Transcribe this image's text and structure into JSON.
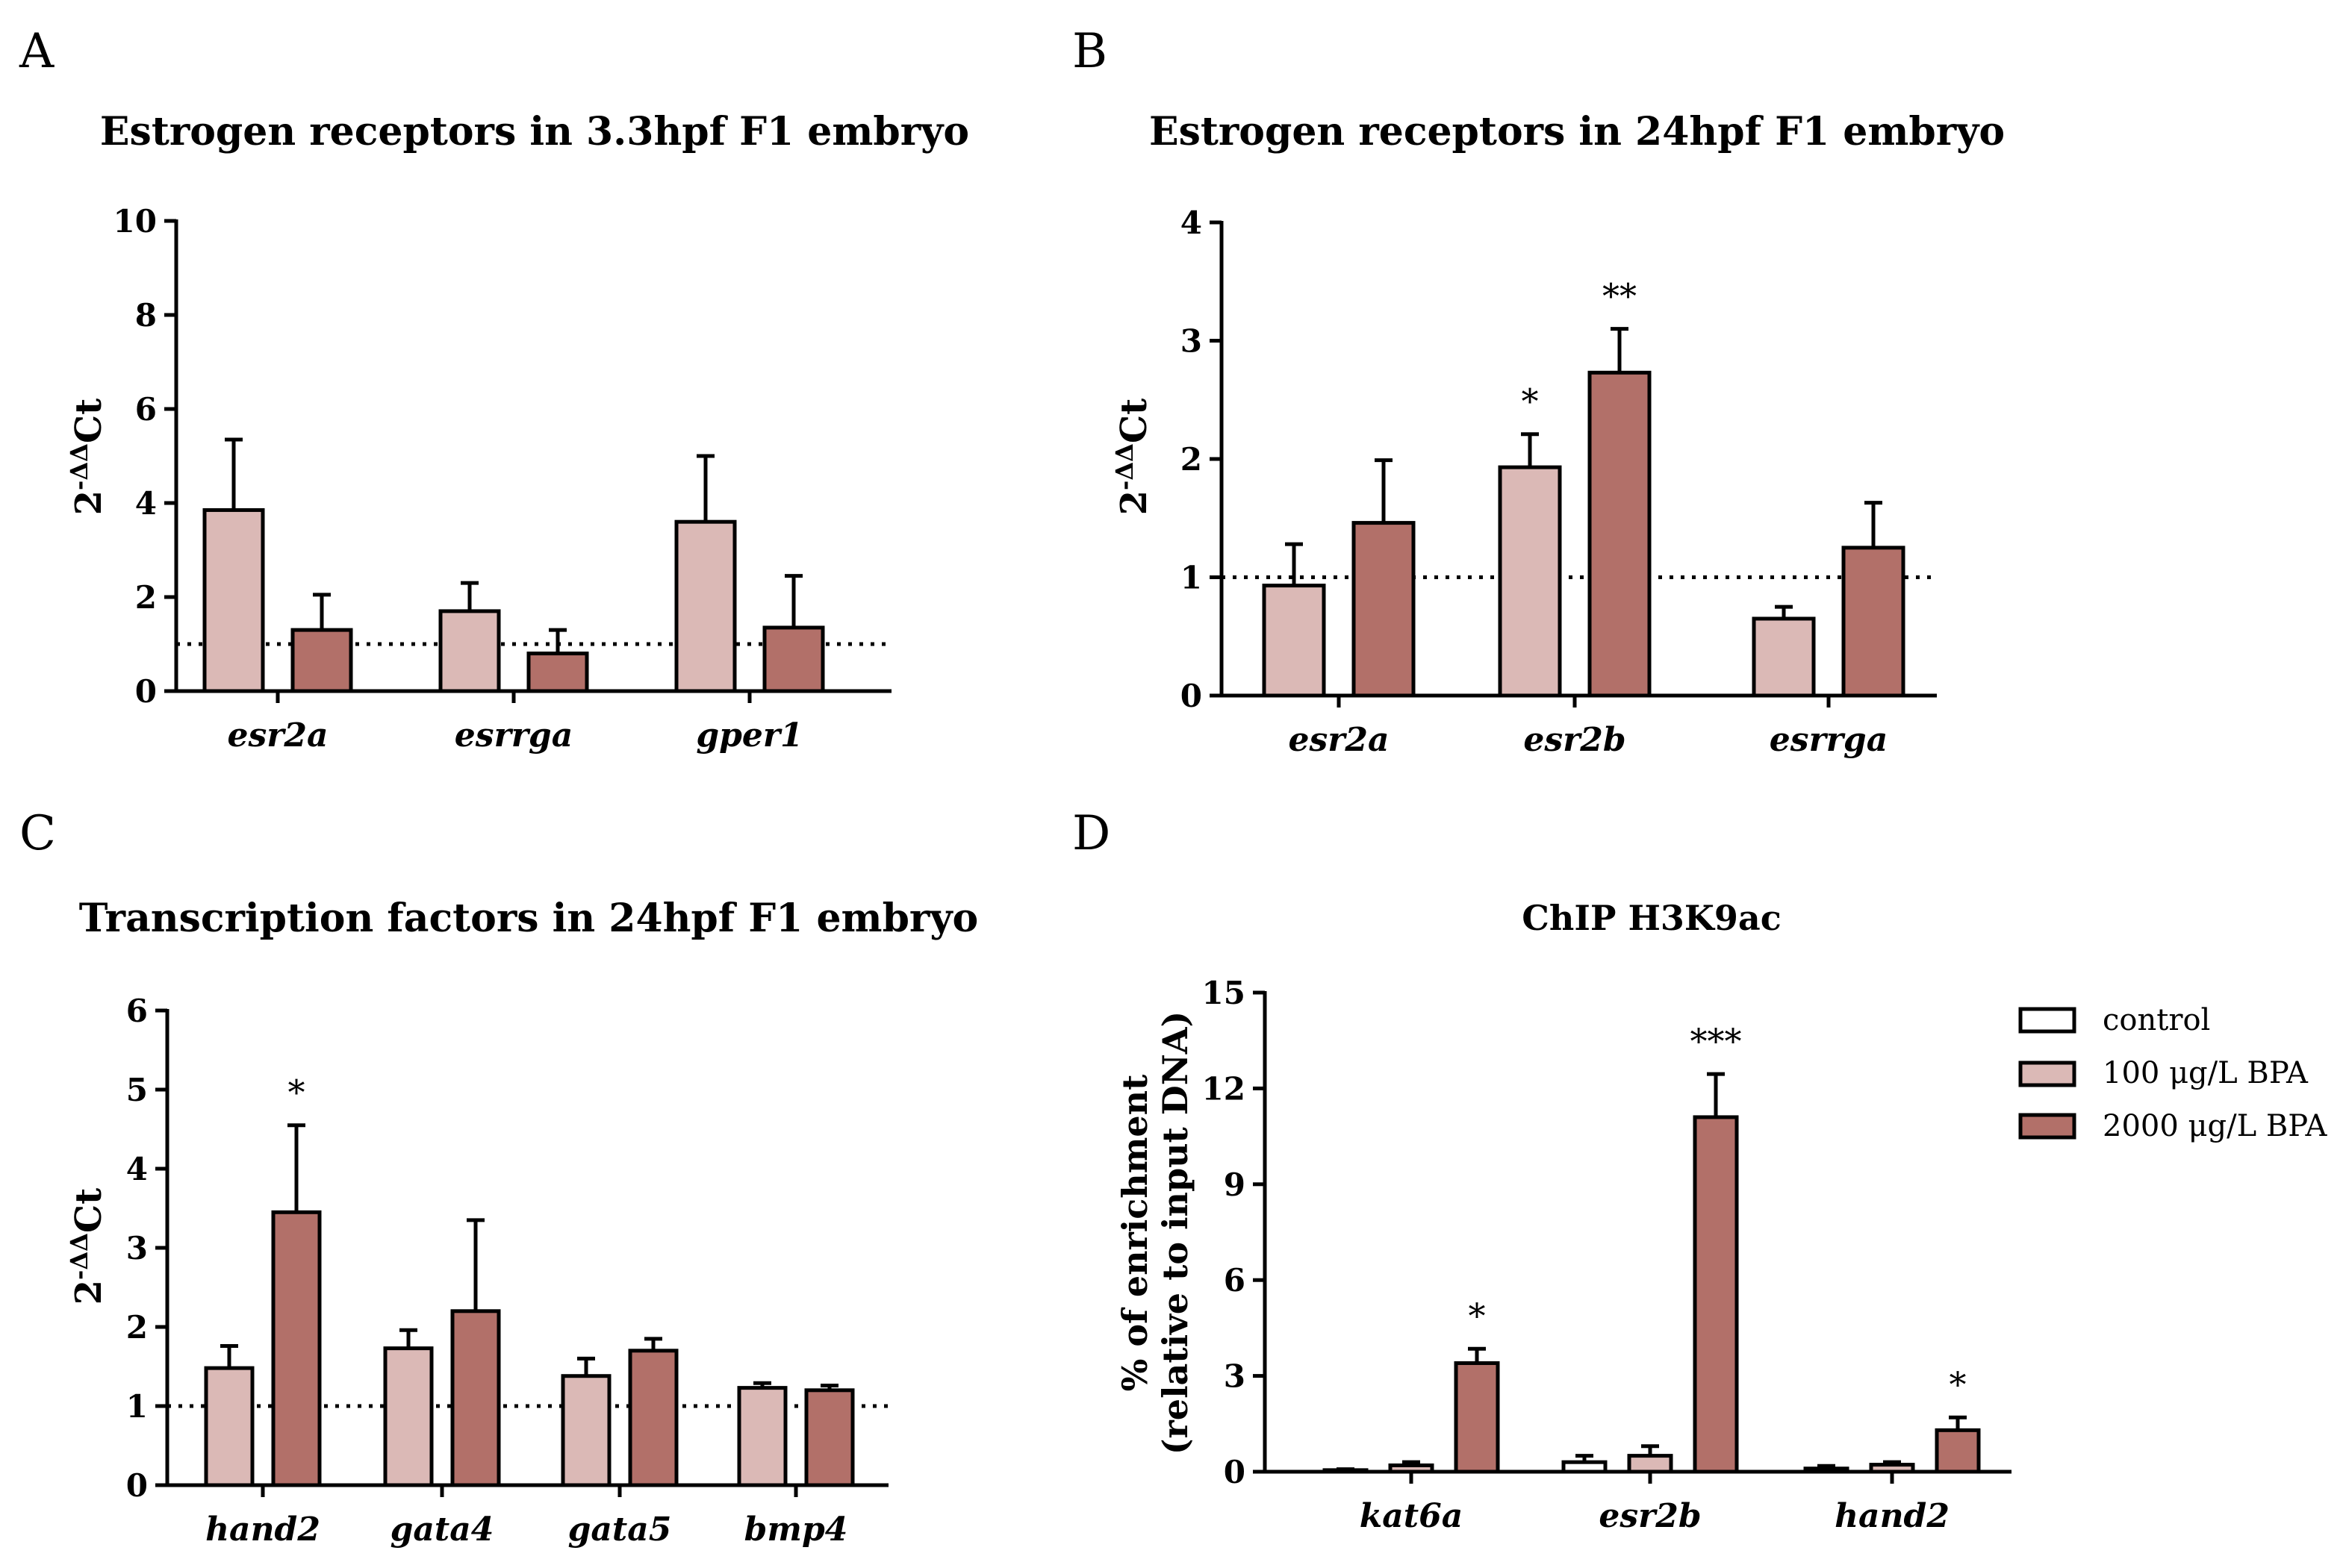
{
  "legend": {
    "items": [
      {
        "label": "control",
        "color": "#ffffff"
      },
      {
        "label": "100 μg/L BPA",
        "color": "#dbb9b6"
      },
      {
        "label": "2000 μg/L BPA",
        "color": "#b27069"
      }
    ]
  },
  "chart_data": [
    {
      "panel": "A",
      "type": "bar",
      "title": "Estrogen receptors in 3.3hpf F1 embryo",
      "ylabel": "2-ΔΔCt",
      "ylim": [
        0,
        10
      ],
      "yticks": [
        0,
        2,
        4,
        6,
        8,
        10
      ],
      "reference_line": 1,
      "categories": [
        "esr2a",
        "esrrga",
        "gper1"
      ],
      "series": [
        {
          "name": "100 μg/L BPA",
          "color": "#dbb9b6",
          "values": [
            3.85,
            1.7,
            3.6
          ],
          "errors": [
            1.5,
            0.6,
            1.4
          ],
          "sig": [
            "",
            "",
            ""
          ]
        },
        {
          "name": "2000 μg/L BPA",
          "color": "#b27069",
          "values": [
            1.3,
            0.8,
            1.35
          ],
          "errors": [
            0.75,
            0.5,
            1.1
          ],
          "sig": [
            "",
            "",
            ""
          ]
        }
      ]
    },
    {
      "panel": "B",
      "type": "bar",
      "title": "Estrogen receptors in 24hpf F1 embryo",
      "ylabel": "2-ΔΔCt",
      "ylim": [
        0,
        4
      ],
      "yticks": [
        0,
        1,
        2,
        3,
        4
      ],
      "reference_line": 1,
      "categories": [
        "esr2a",
        "esr2b",
        "esrrga"
      ],
      "series": [
        {
          "name": "100 μg/L BPA",
          "color": "#dbb9b6",
          "values": [
            0.93,
            1.93,
            0.65
          ],
          "errors": [
            0.35,
            0.28,
            0.1
          ],
          "sig": [
            "",
            "*",
            ""
          ]
        },
        {
          "name": "2000 μg/L BPA",
          "color": "#b27069",
          "values": [
            1.46,
            2.73,
            1.25
          ],
          "errors": [
            0.53,
            0.37,
            0.38
          ],
          "sig": [
            "",
            "**",
            ""
          ]
        }
      ]
    },
    {
      "panel": "C",
      "type": "bar",
      "title": "Transcription factors in 24hpf F1 embryo",
      "ylabel": "2-ΔΔCt",
      "ylim": [
        0,
        6
      ],
      "yticks": [
        0,
        1,
        2,
        3,
        4,
        5,
        6
      ],
      "reference_line": 1,
      "categories": [
        "hand2",
        "gata4",
        "gata5",
        "bmp4"
      ],
      "series": [
        {
          "name": "100 μg/L BPA",
          "color": "#dbb9b6",
          "values": [
            1.48,
            1.73,
            1.38,
            1.23
          ],
          "errors": [
            0.28,
            0.23,
            0.22,
            0.06
          ],
          "sig": [
            "",
            "",
            "",
            ""
          ]
        },
        {
          "name": "2000 μg/L BPA",
          "color": "#b27069",
          "values": [
            3.45,
            2.2,
            1.7,
            1.2
          ],
          "errors": [
            1.1,
            1.15,
            0.15,
            0.06
          ],
          "sig": [
            "*",
            "",
            "",
            ""
          ]
        }
      ]
    },
    {
      "panel": "D",
      "type": "bar",
      "title": "ChIP H3K9ac",
      "ylabel_lines": [
        "% of enrichment",
        "(relative to input DNA)"
      ],
      "ylim": [
        0,
        15
      ],
      "yticks": [
        0,
        3,
        6,
        9,
        12,
        15
      ],
      "categories": [
        "kat6a",
        "esr2b",
        "hand2"
      ],
      "series": [
        {
          "name": "control",
          "color": "#ffffff",
          "values": [
            0.05,
            0.3,
            0.1
          ],
          "errors": [
            0.03,
            0.2,
            0.08
          ],
          "sig": [
            "",
            "",
            ""
          ]
        },
        {
          "name": "100 μg/L BPA",
          "color": "#dbb9b6",
          "values": [
            0.2,
            0.5,
            0.22
          ],
          "errors": [
            0.1,
            0.3,
            0.08
          ],
          "sig": [
            "",
            "",
            ""
          ]
        },
        {
          "name": "2000 μg/L BPA",
          "color": "#b27069",
          "values": [
            3.4,
            11.1,
            1.3
          ],
          "errors": [
            0.45,
            1.35,
            0.4
          ],
          "sig": [
            "*",
            "***",
            "*"
          ]
        }
      ]
    }
  ]
}
